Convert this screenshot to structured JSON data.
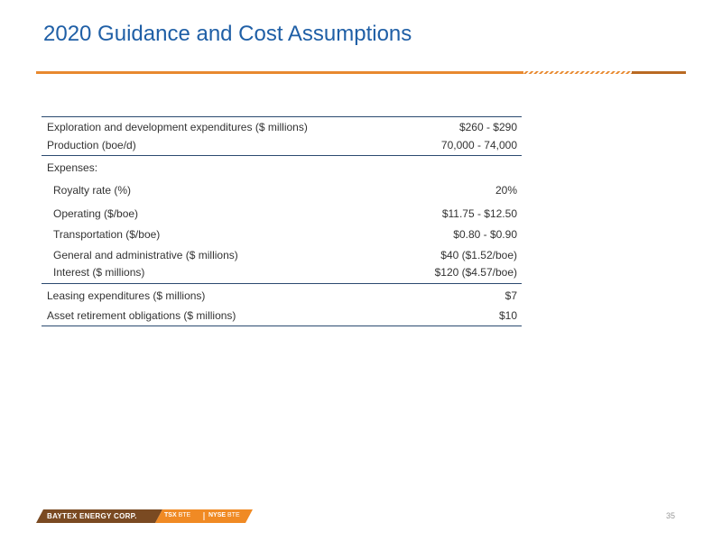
{
  "header": {
    "title": "2020 Guidance and Cost Assumptions"
  },
  "table": {
    "rows": [
      {
        "label": "Exploration and development expenditures ($ millions)",
        "value": "$260 - $290"
      },
      {
        "label": "Production (boe/d)",
        "value": "70,000 - 74,000"
      },
      {
        "label": "Expenses:"
      },
      {
        "label": "Royalty rate (%)",
        "value": "20%"
      },
      {
        "label": "Operating ($/boe)",
        "value": "$11.75 - $12.50"
      },
      {
        "label": "Transportation ($/boe)",
        "value": "$0.80 - $0.90"
      },
      {
        "label": "General and administrative ($ millions)",
        "value": "$40 ($1.52/boe)"
      },
      {
        "label": "Interest ($ millions)",
        "value": "$120 ($4.57/boe)"
      },
      {
        "label": "Leasing expenditures ($ millions)",
        "value": "$7"
      },
      {
        "label": "Asset retirement obligations ($ millions)",
        "value": "$10"
      }
    ]
  },
  "footer": {
    "company": "BAYTEX ENERGY CORP.",
    "tickers": [
      {
        "exchange": "TSX",
        "symbol": "BTE"
      },
      {
        "exchange": "NYSE",
        "symbol": "BTE"
      }
    ],
    "page": "35"
  }
}
